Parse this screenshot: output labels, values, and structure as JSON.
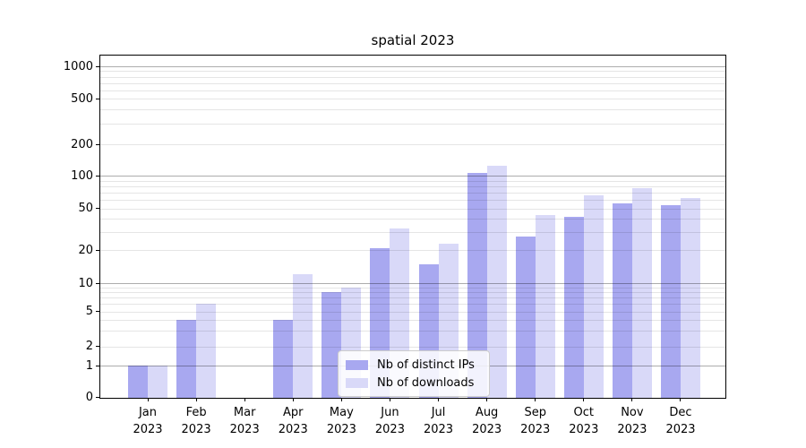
{
  "chart_data": {
    "type": "bar",
    "title": "spatial 2023",
    "categories": [
      "Jan 2023",
      "Feb 2023",
      "Mar 2023",
      "Apr 2023",
      "May 2023",
      "Jun 2023",
      "Jul 2023",
      "Aug 2023",
      "Sep 2023",
      "Oct 2023",
      "Nov 2023",
      "Dec 2023"
    ],
    "series": [
      {
        "name": "Nb of distinct IPs",
        "color": "#a8a8f0",
        "values": [
          1,
          4,
          0,
          4,
          8,
          21,
          15,
          106,
          27,
          42,
          56,
          54
        ]
      },
      {
        "name": "Nb of downloads",
        "color": "#d9d9f8",
        "values": [
          1,
          6,
          0,
          12,
          9,
          32,
          23,
          126,
          43,
          66,
          77,
          62
        ]
      }
    ],
    "xlabel": "",
    "ylabel": "",
    "yticks": [
      0,
      1,
      2,
      5,
      10,
      20,
      50,
      100,
      200,
      500,
      1000
    ],
    "yscale": "symlog (log above 1, 0 at baseline)",
    "ylim": [
      0,
      1250
    ],
    "grid": "horizontal major and minor gridlines",
    "legend_position": "lower center",
    "grid_major_color": "#b3b3b3",
    "grid_minor_color": "#e6e6e6",
    "axis_color": "#000000",
    "background_color": "#ffffff"
  }
}
